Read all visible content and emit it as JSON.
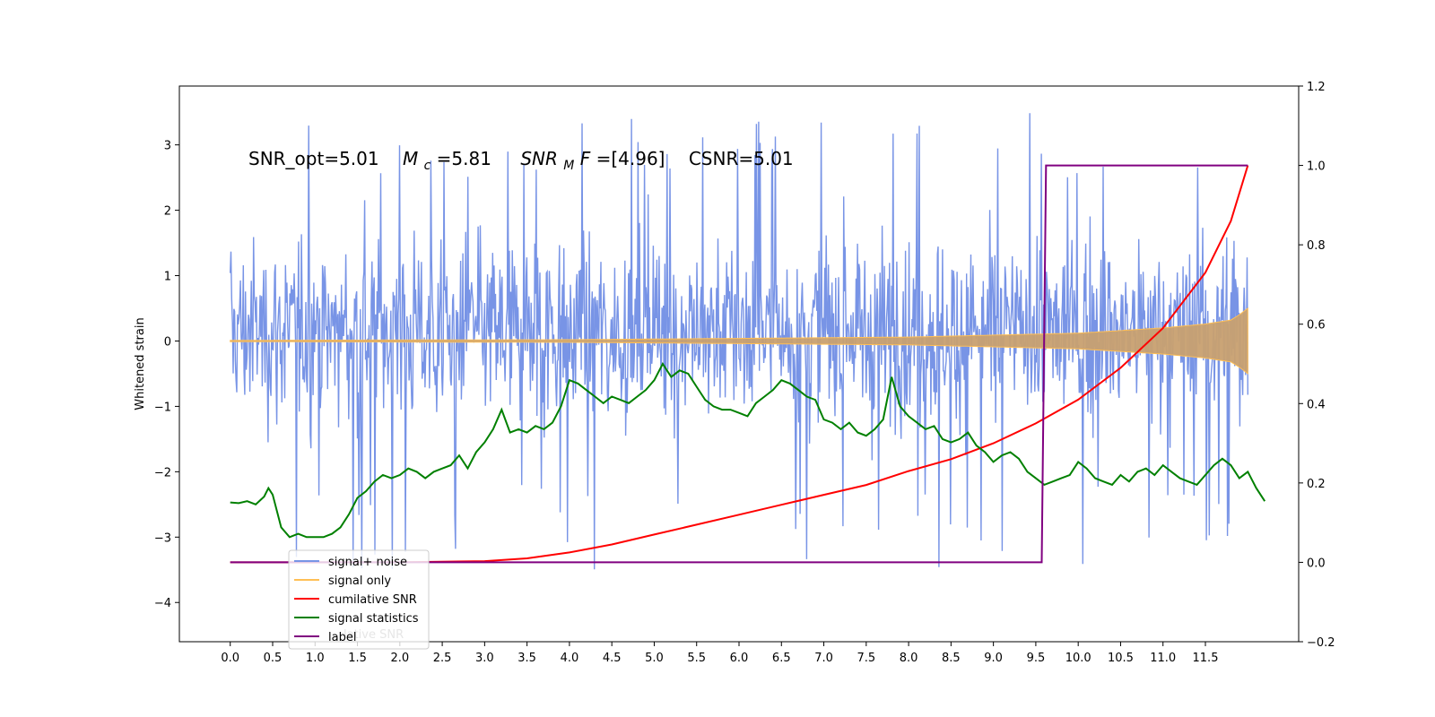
{
  "chart_data": {
    "type": "line",
    "annotation": {
      "snr_opt": "SNR_opt=5.01",
      "mc_symbol": "M",
      "mc_sub": "c",
      "mc_value": "=5.81",
      "snrmf_symbol": "SNR",
      "snrmf_sub": "M",
      "snrmf_f": "F",
      "snrmf_value": "=[4.96]",
      "csnr": "CSNR=5.01"
    },
    "ylabel_left": "Whitened strain",
    "xlabel": "",
    "xlim": [
      -0.6,
      12.6
    ],
    "ylim_left": [
      -4.6,
      3.9
    ],
    "ylim_right": [
      -0.2,
      1.2
    ],
    "x_ticks": [
      "0.0",
      "0.5",
      "1.0",
      "1.5",
      "2.0",
      "2.5",
      "3.0",
      "3.5",
      "4.0",
      "4.5",
      "5.0",
      "5.5",
      "6.0",
      "6.5",
      "7.0",
      "7.5",
      "8.0",
      "8.5",
      "9.0",
      "9.5",
      "10.0",
      "10.5",
      "11.0",
      "11.5"
    ],
    "y_left_ticks": [
      "−4",
      "−3",
      "−2",
      "−1",
      "0",
      "1",
      "2",
      "3"
    ],
    "y_right_ticks": [
      "−0.2",
      "0.0",
      "0.2",
      "0.4",
      "0.6",
      "0.8",
      "1.0",
      "1.2"
    ],
    "legend": {
      "location": "lower-left",
      "entries": [
        {
          "label": "signal+ noise",
          "color": "#7894e6"
        },
        {
          "label": "signal only",
          "color": "#ffbf55"
        },
        {
          "label": "cumilative SNR",
          "color": "#ff0000"
        },
        {
          "label": "signal statistics",
          "color": "#008000"
        },
        {
          "label": "label",
          "color": "#800080"
        }
      ],
      "ghost_text": "lative SNR"
    },
    "series": [
      {
        "name": "signal+ noise",
        "axis": "left",
        "color": "#7894e6",
        "x_range": [
          0.0,
          12.0
        ],
        "envelope": {
          "typical_min": -2.0,
          "typical_max": 2.4,
          "peak_max": 3.5,
          "peak_min": -4.1
        }
      },
      {
        "name": "signal only",
        "axis": "left",
        "color": "#c8a070",
        "x_range": [
          0.0,
          12.0
        ],
        "amplitude_points": [
          [
            0.0,
            0.01
          ],
          [
            4.0,
            0.02
          ],
          [
            8.0,
            0.06
          ],
          [
            10.0,
            0.12
          ],
          [
            11.0,
            0.2
          ],
          [
            11.5,
            0.26
          ],
          [
            11.8,
            0.32
          ],
          [
            11.9,
            0.4
          ],
          [
            12.0,
            0.5
          ]
        ]
      },
      {
        "name": "cumilative SNR",
        "axis": "right",
        "color": "#ff0000",
        "points": [
          [
            0.0,
            0.0
          ],
          [
            2.0,
            0.0
          ],
          [
            3.0,
            0.003
          ],
          [
            3.5,
            0.01
          ],
          [
            4.0,
            0.025
          ],
          [
            4.5,
            0.045
          ],
          [
            5.0,
            0.07
          ],
          [
            5.5,
            0.095
          ],
          [
            6.0,
            0.12
          ],
          [
            6.5,
            0.145
          ],
          [
            7.0,
            0.17
          ],
          [
            7.5,
            0.195
          ],
          [
            8.0,
            0.23
          ],
          [
            8.5,
            0.26
          ],
          [
            9.0,
            0.3
          ],
          [
            9.5,
            0.35
          ],
          [
            10.0,
            0.41
          ],
          [
            10.5,
            0.49
          ],
          [
            11.0,
            0.59
          ],
          [
            11.5,
            0.73
          ],
          [
            11.8,
            0.86
          ],
          [
            12.0,
            1.0
          ]
        ]
      },
      {
        "name": "signal statistics",
        "axis": "left",
        "color": "#008000",
        "points": [
          [
            0.0,
            -2.47
          ],
          [
            0.1,
            -2.48
          ],
          [
            0.2,
            -2.45
          ],
          [
            0.3,
            -2.5
          ],
          [
            0.4,
            -2.38
          ],
          [
            0.45,
            -2.25
          ],
          [
            0.5,
            -2.35
          ],
          [
            0.6,
            -2.85
          ],
          [
            0.7,
            -3.0
          ],
          [
            0.8,
            -2.95
          ],
          [
            0.9,
            -3.0
          ],
          [
            1.0,
            -3.0
          ],
          [
            1.1,
            -3.0
          ],
          [
            1.2,
            -2.95
          ],
          [
            1.3,
            -2.85
          ],
          [
            1.4,
            -2.65
          ],
          [
            1.5,
            -2.4
          ],
          [
            1.6,
            -2.3
          ],
          [
            1.7,
            -2.15
          ],
          [
            1.8,
            -2.05
          ],
          [
            1.9,
            -2.1
          ],
          [
            2.0,
            -2.05
          ],
          [
            2.1,
            -1.95
          ],
          [
            2.2,
            -2.0
          ],
          [
            2.3,
            -2.1
          ],
          [
            2.4,
            -2.0
          ],
          [
            2.5,
            -1.95
          ],
          [
            2.6,
            -1.9
          ],
          [
            2.7,
            -1.75
          ],
          [
            2.8,
            -1.95
          ],
          [
            2.9,
            -1.7
          ],
          [
            3.0,
            -1.55
          ],
          [
            3.1,
            -1.35
          ],
          [
            3.2,
            -1.05
          ],
          [
            3.3,
            -1.4
          ],
          [
            3.4,
            -1.35
          ],
          [
            3.5,
            -1.4
          ],
          [
            3.6,
            -1.3
          ],
          [
            3.7,
            -1.35
          ],
          [
            3.8,
            -1.25
          ],
          [
            3.9,
            -1.0
          ],
          [
            4.0,
            -0.6
          ],
          [
            4.1,
            -0.65
          ],
          [
            4.2,
            -0.75
          ],
          [
            4.3,
            -0.85
          ],
          [
            4.4,
            -0.95
          ],
          [
            4.5,
            -0.85
          ],
          [
            4.6,
            -0.9
          ],
          [
            4.7,
            -0.95
          ],
          [
            4.8,
            -0.85
          ],
          [
            4.9,
            -0.75
          ],
          [
            5.0,
            -0.6
          ],
          [
            5.1,
            -0.35
          ],
          [
            5.2,
            -0.55
          ],
          [
            5.3,
            -0.45
          ],
          [
            5.4,
            -0.5
          ],
          [
            5.5,
            -0.7
          ],
          [
            5.6,
            -0.9
          ],
          [
            5.7,
            -1.0
          ],
          [
            5.8,
            -1.05
          ],
          [
            5.9,
            -1.05
          ],
          [
            6.0,
            -1.1
          ],
          [
            6.1,
            -1.15
          ],
          [
            6.2,
            -0.95
          ],
          [
            6.3,
            -0.85
          ],
          [
            6.4,
            -0.75
          ],
          [
            6.5,
            -0.6
          ],
          [
            6.6,
            -0.65
          ],
          [
            6.7,
            -0.75
          ],
          [
            6.8,
            -0.85
          ],
          [
            6.9,
            -0.9
          ],
          [
            7.0,
            -1.2
          ],
          [
            7.1,
            -1.25
          ],
          [
            7.2,
            -1.35
          ],
          [
            7.3,
            -1.25
          ],
          [
            7.4,
            -1.4
          ],
          [
            7.5,
            -1.45
          ],
          [
            7.6,
            -1.35
          ],
          [
            7.7,
            -1.2
          ],
          [
            7.8,
            -0.55
          ],
          [
            7.9,
            -1.0
          ],
          [
            8.0,
            -1.15
          ],
          [
            8.1,
            -1.25
          ],
          [
            8.2,
            -1.35
          ],
          [
            8.3,
            -1.3
          ],
          [
            8.4,
            -1.5
          ],
          [
            8.5,
            -1.55
          ],
          [
            8.6,
            -1.5
          ],
          [
            8.7,
            -1.4
          ],
          [
            8.8,
            -1.6
          ],
          [
            8.9,
            -1.7
          ],
          [
            9.0,
            -1.85
          ],
          [
            9.1,
            -1.75
          ],
          [
            9.2,
            -1.7
          ],
          [
            9.3,
            -1.8
          ],
          [
            9.4,
            -2.0
          ],
          [
            9.5,
            -2.1
          ],
          [
            9.6,
            -2.2
          ],
          [
            9.7,
            -2.15
          ],
          [
            9.8,
            -2.1
          ],
          [
            9.9,
            -2.05
          ],
          [
            10.0,
            -1.85
          ],
          [
            10.1,
            -1.95
          ],
          [
            10.2,
            -2.1
          ],
          [
            10.3,
            -2.15
          ],
          [
            10.4,
            -2.2
          ],
          [
            10.5,
            -2.05
          ],
          [
            10.6,
            -2.15
          ],
          [
            10.7,
            -2.0
          ],
          [
            10.8,
            -1.95
          ],
          [
            10.9,
            -2.05
          ],
          [
            11.0,
            -1.9
          ],
          [
            11.1,
            -2.0
          ],
          [
            11.2,
            -2.1
          ],
          [
            11.3,
            -2.15
          ],
          [
            11.4,
            -2.2
          ],
          [
            11.5,
            -2.05
          ],
          [
            11.6,
            -1.9
          ],
          [
            11.7,
            -1.8
          ],
          [
            11.8,
            -1.9
          ],
          [
            11.9,
            -2.1
          ],
          [
            12.0,
            -2.0
          ],
          [
            12.1,
            -2.25
          ],
          [
            12.2,
            -2.45
          ]
        ]
      },
      {
        "name": "label",
        "axis": "right",
        "color": "#800080",
        "points": [
          [
            0.0,
            0.0
          ],
          [
            9.57,
            0.0
          ],
          [
            9.62,
            1.0
          ],
          [
            12.0,
            1.0
          ]
        ]
      }
    ]
  }
}
